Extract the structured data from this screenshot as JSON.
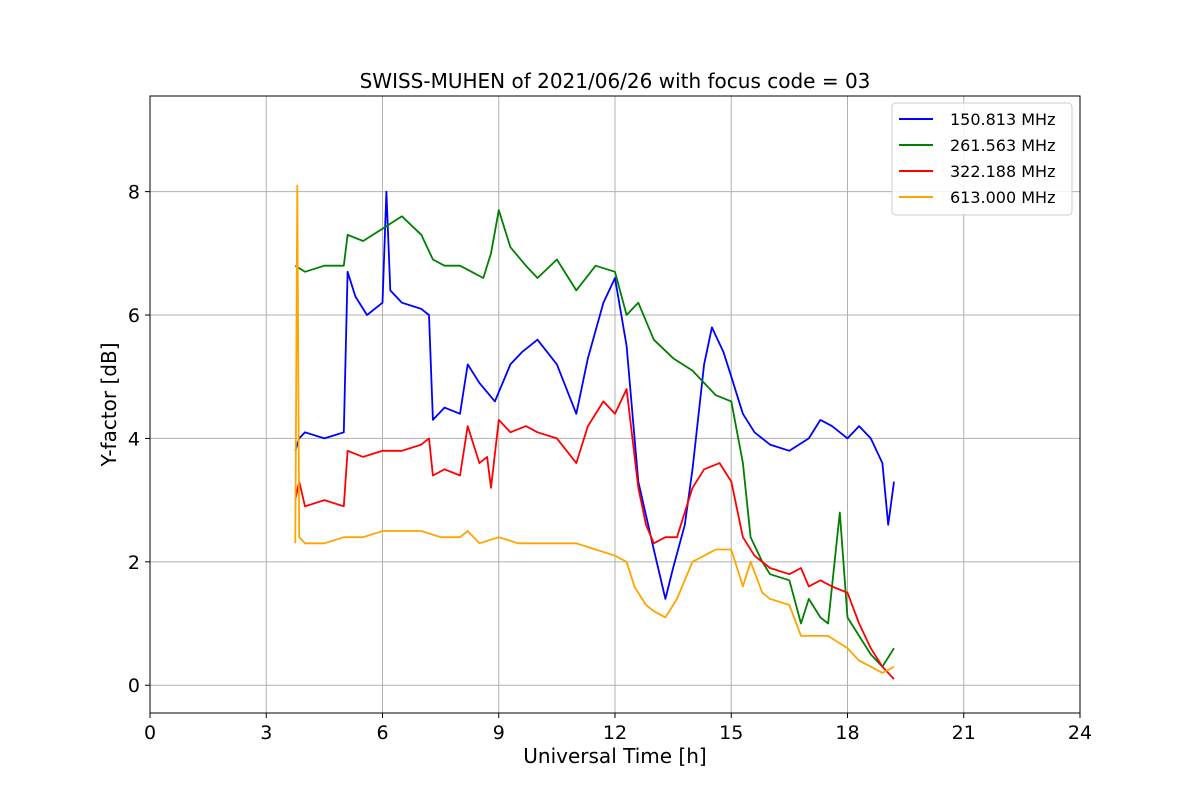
{
  "chart_data": {
    "type": "line",
    "title": "SWISS-MUHEN of 2021/06/26 with focus code = 03",
    "xlabel": "Universal Time [h]",
    "ylabel": "Y-factor [dB]",
    "xlim": [
      0,
      24
    ],
    "ylim": [
      -0.45,
      9.55
    ],
    "x_ticks": [
      0,
      3,
      6,
      9,
      12,
      15,
      18,
      21,
      24
    ],
    "y_ticks": [
      0,
      2,
      4,
      6,
      8
    ],
    "grid": true,
    "legend_position": "top-right",
    "series": [
      {
        "name": "150.813 MHz",
        "color": "#0000ff",
        "x": [
          3.75,
          3.85,
          4.0,
          4.5,
          5.0,
          5.1,
          5.3,
          5.6,
          6.0,
          6.1,
          6.2,
          6.5,
          7.0,
          7.2,
          7.3,
          7.6,
          8.0,
          8.2,
          8.5,
          8.9,
          9.3,
          9.6,
          10.0,
          10.5,
          11.0,
          11.3,
          11.7,
          12.0,
          12.3,
          12.6,
          13.0,
          13.3,
          13.5,
          13.8,
          14.0,
          14.3,
          14.5,
          14.8,
          15.0,
          15.3,
          15.6,
          16.0,
          16.5,
          17.0,
          17.3,
          17.6,
          18.0,
          18.3,
          18.6,
          18.9,
          19.05,
          19.2
        ],
        "y": [
          3.8,
          4.0,
          4.1,
          4.0,
          4.1,
          6.7,
          6.3,
          6.0,
          6.2,
          8.0,
          6.4,
          6.2,
          6.1,
          6.0,
          4.3,
          4.5,
          4.4,
          5.2,
          4.9,
          4.6,
          5.2,
          5.4,
          5.6,
          5.2,
          4.4,
          5.3,
          6.2,
          6.6,
          5.5,
          3.3,
          2.2,
          1.4,
          1.9,
          2.6,
          3.5,
          5.2,
          5.8,
          5.4,
          5.0,
          4.4,
          4.1,
          3.9,
          3.8,
          4.0,
          4.3,
          4.2,
          4.0,
          4.2,
          4.0,
          3.6,
          2.6,
          3.3
        ]
      },
      {
        "name": "261.563 MHz",
        "color": "#008000",
        "x": [
          3.75,
          4.0,
          4.5,
          5.0,
          5.1,
          5.5,
          6.0,
          6.5,
          7.0,
          7.3,
          7.6,
          8.0,
          8.3,
          8.6,
          8.8,
          9.0,
          9.3,
          9.7,
          10.0,
          10.5,
          11.0,
          11.5,
          12.0,
          12.3,
          12.6,
          13.0,
          13.5,
          14.0,
          14.3,
          14.6,
          15.0,
          15.3,
          15.5,
          15.8,
          16.0,
          16.5,
          16.8,
          17.0,
          17.3,
          17.5,
          17.8,
          18.0,
          18.3,
          18.6,
          18.9,
          19.2
        ],
        "y": [
          6.8,
          6.7,
          6.8,
          6.8,
          7.3,
          7.2,
          7.4,
          7.6,
          7.3,
          6.9,
          6.8,
          6.8,
          6.7,
          6.6,
          7.0,
          7.7,
          7.1,
          6.8,
          6.6,
          6.9,
          6.4,
          6.8,
          6.7,
          6.0,
          6.2,
          5.6,
          5.3,
          5.1,
          4.9,
          4.7,
          4.6,
          3.6,
          2.4,
          2.0,
          1.8,
          1.7,
          1.0,
          1.4,
          1.1,
          1.0,
          2.8,
          1.1,
          0.8,
          0.5,
          0.3,
          0.6
        ]
      },
      {
        "name": "322.188 MHz",
        "color": "#ff0000",
        "x": [
          3.75,
          3.85,
          4.0,
          4.5,
          5.0,
          5.1,
          5.5,
          6.0,
          6.5,
          7.0,
          7.2,
          7.3,
          7.6,
          8.0,
          8.2,
          8.5,
          8.7,
          8.8,
          9.0,
          9.3,
          9.7,
          10.0,
          10.5,
          11.0,
          11.3,
          11.7,
          12.0,
          12.3,
          12.6,
          12.8,
          13.0,
          13.3,
          13.6,
          14.0,
          14.3,
          14.7,
          15.0,
          15.3,
          15.6,
          16.0,
          16.5,
          16.8,
          17.0,
          17.3,
          17.6,
          18.0,
          18.3,
          18.6,
          18.9,
          19.2
        ],
        "y": [
          3.0,
          3.3,
          2.9,
          3.0,
          2.9,
          3.8,
          3.7,
          3.8,
          3.8,
          3.9,
          4.0,
          3.4,
          3.5,
          3.4,
          4.2,
          3.6,
          3.7,
          3.2,
          4.3,
          4.1,
          4.2,
          4.1,
          4.0,
          3.6,
          4.2,
          4.6,
          4.4,
          4.8,
          3.2,
          2.6,
          2.3,
          2.4,
          2.4,
          3.2,
          3.5,
          3.6,
          3.3,
          2.4,
          2.1,
          1.9,
          1.8,
          1.9,
          1.6,
          1.7,
          1.6,
          1.5,
          1.0,
          0.6,
          0.3,
          0.1
        ]
      },
      {
        "name": "613.000 MHz",
        "color": "#ffa500",
        "x": [
          3.75,
          3.8,
          3.85,
          4.0,
          4.5,
          5.0,
          5.5,
          6.0,
          6.5,
          7.0,
          7.5,
          8.0,
          8.2,
          8.5,
          9.0,
          9.5,
          10.0,
          10.5,
          11.0,
          11.5,
          12.0,
          12.3,
          12.5,
          12.8,
          13.0,
          13.3,
          13.6,
          14.0,
          14.3,
          14.6,
          15.0,
          15.3,
          15.5,
          15.8,
          16.0,
          16.5,
          16.8,
          17.0,
          17.5,
          18.0,
          18.3,
          18.6,
          18.9,
          19.2
        ],
        "y": [
          2.3,
          8.1,
          2.4,
          2.3,
          2.3,
          2.4,
          2.4,
          2.5,
          2.5,
          2.5,
          2.4,
          2.4,
          2.5,
          2.3,
          2.4,
          2.3,
          2.3,
          2.3,
          2.3,
          2.2,
          2.1,
          2.0,
          1.6,
          1.3,
          1.2,
          1.1,
          1.4,
          2.0,
          2.1,
          2.2,
          2.2,
          1.6,
          2.0,
          1.5,
          1.4,
          1.3,
          0.8,
          0.8,
          0.8,
          0.6,
          0.4,
          0.3,
          0.2,
          0.3
        ]
      }
    ]
  }
}
